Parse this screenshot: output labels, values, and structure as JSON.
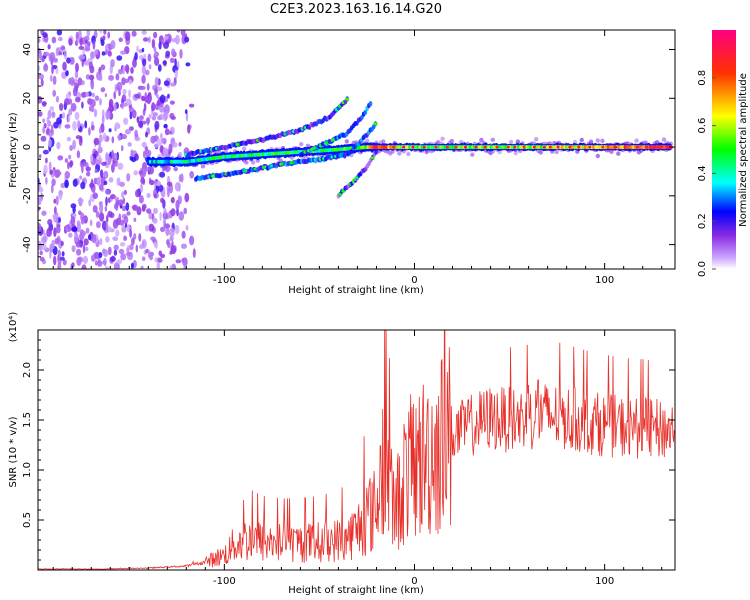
{
  "title": "C2E3.2023.163.16.14.G20",
  "chart_data": [
    {
      "type": "heatmap",
      "title": "C2E3.2023.163.16.14.G20",
      "xlabel": "Height of straight line (km)",
      "ylabel": "Frequency (Hz)",
      "xlim": [
        -198,
        137
      ],
      "ylim": [
        -50,
        48
      ],
      "xticks": [
        -100,
        0,
        100
      ],
      "yticks": [
        -40,
        -20,
        0,
        20,
        40
      ],
      "colorbar": {
        "label": "Normalized spectral amplitude",
        "range": [
          0.0,
          1.0
        ],
        "ticks": [
          "0.0",
          "0.2",
          "0.4",
          "0.6",
          "0.8"
        ],
        "colors": [
          "#ffffff",
          "#9b30ff",
          "#0000ff",
          "#00ffff",
          "#00ff00",
          "#ffff00",
          "#ff0000",
          "#ff0080"
        ]
      },
      "features": [
        {
          "name": "noise",
          "x_range": [
            -198,
            -115
          ],
          "freq_range": [
            -50,
            48
          ],
          "amplitude": 0.15
        },
        {
          "name": "main-band",
          "x": [
            -140,
            -120,
            -100,
            -80,
            -60,
            -40,
            -25,
            -20,
            0,
            50,
            100,
            135
          ],
          "freq": [
            -6,
            -6,
            -4,
            -3,
            -2,
            -1,
            0,
            0,
            0,
            0,
            0,
            0
          ],
          "amplitude": [
            0.35,
            0.4,
            0.45,
            0.45,
            0.45,
            0.5,
            0.55,
            0.85,
            0.5,
            0.55,
            0.7,
            0.85
          ]
        },
        {
          "name": "upper-branch",
          "x": [
            -120,
            -100,
            -80,
            -60,
            -45,
            -35
          ],
          "freq": [
            -3,
            0,
            3,
            7,
            12,
            20
          ],
          "amplitude": 0.2
        },
        {
          "name": "upper-branch-2",
          "x": [
            -60,
            -45,
            -35,
            -28,
            -23
          ],
          "freq": [
            -3,
            2,
            6,
            12,
            18
          ],
          "amplitude": 0.25
        },
        {
          "name": "lower-branch",
          "x": [
            -115,
            -90,
            -70,
            -50,
            -35,
            -25,
            -20
          ],
          "freq": [
            -13,
            -10,
            -7,
            -5,
            -3,
            5,
            10
          ],
          "amplitude": 0.25
        },
        {
          "name": "lower-tail",
          "x": [
            -40,
            -32,
            -25,
            -20
          ],
          "freq": [
            -20,
            -14,
            -8,
            -2
          ],
          "amplitude": 0.15
        }
      ]
    },
    {
      "type": "line",
      "xlabel": "Height of straight line (km)",
      "ylabel": "SNR (10 * v/v)",
      "scale_label": "(x10⁴)",
      "xlim": [
        -198,
        137
      ],
      "ylim": [
        0,
        2.4
      ],
      "xticks": [
        -100,
        0,
        100
      ],
      "yticks": [
        0.5,
        1.0,
        1.5,
        2.0
      ],
      "color": "#e8302a",
      "x": [
        -198,
        -160,
        -140,
        -120,
        -110,
        -100,
        -95,
        -90,
        -85,
        -80,
        -70,
        -60,
        -50,
        -40,
        -35,
        -30,
        -25,
        -20,
        -17,
        -15,
        -12,
        -10,
        -5,
        0,
        10,
        20,
        30,
        40,
        50,
        60,
        70,
        80,
        90,
        100,
        110,
        120,
        130,
        137
      ],
      "values": [
        0.01,
        0.01,
        0.02,
        0.04,
        0.08,
        0.15,
        0.25,
        0.3,
        0.3,
        0.28,
        0.27,
        0.27,
        0.28,
        0.3,
        0.33,
        0.4,
        0.55,
        0.6,
        1.1,
        0.95,
        0.7,
        0.6,
        0.95,
        1.05,
        1.2,
        1.35,
        1.45,
        1.52,
        1.5,
        1.52,
        1.55,
        1.52,
        1.48,
        1.45,
        1.43,
        1.42,
        1.4,
        1.4
      ],
      "spikes": [
        {
          "x": -15,
          "y": 2.4
        },
        {
          "x": 65,
          "y": 1.9
        },
        {
          "x": 60,
          "y": 1.85
        },
        {
          "x": 28,
          "y": 1.7
        },
        {
          "x": -90,
          "y": 0.7
        }
      ]
    }
  ]
}
